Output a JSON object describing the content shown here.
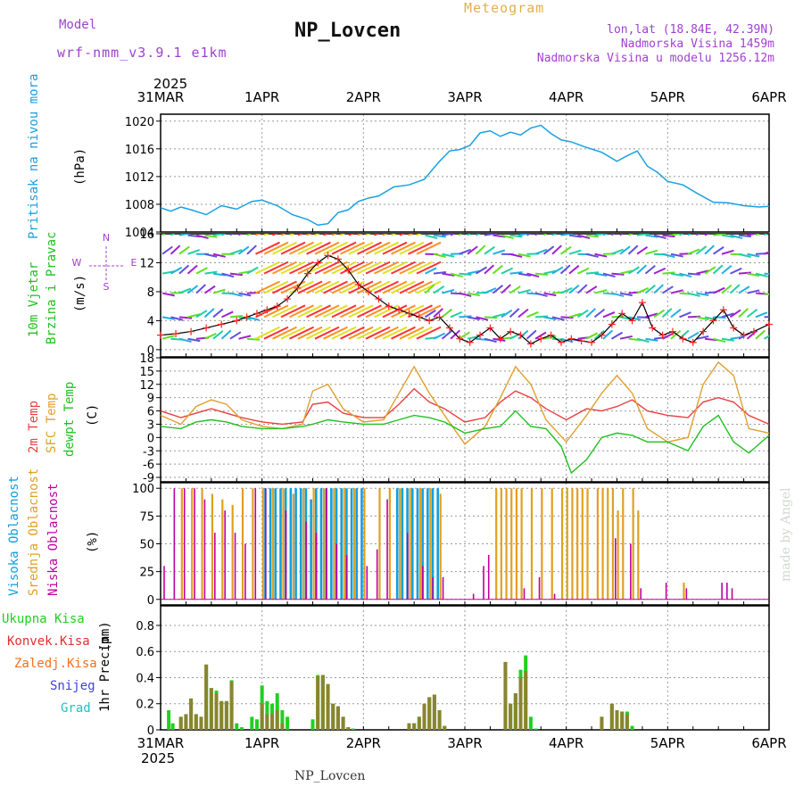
{
  "header": {
    "model_label": "Model",
    "model_version": "wrf-nmm_v3.9.1 e1km",
    "station": "NP_Lovcen",
    "meteogram": "Meteogram",
    "lonlat": "lon,lat (18.84E, 42.39N)",
    "elevation": "Nadmorska Visina 1459m",
    "model_elevation": "Nadmorska Visina u modelu 1256.12m",
    "footer": "NP_Lovcen",
    "made_by": "made by Angel"
  },
  "colors": {
    "pressure": "#1aa0e0",
    "temp2m": "#e84040",
    "sfc": "#e0a030",
    "dewpt": "#20c020",
    "high_cloud": "#10a0e0",
    "mid_cloud": "#e0a020",
    "low_cloud": "#c000a0",
    "total_precip": "#20d020",
    "conv_precip": "#e03030",
    "frozen": "#f07020",
    "snow": "#4040e0",
    "hail": "#20c0c0",
    "wind_line": "#000000",
    "wind_marker": "#ff2020",
    "purple_text": "#a040d0"
  },
  "time_axis": {
    "top_year": "2025",
    "bottom_year": "2025",
    "labels": [
      "31MAR",
      "1APR",
      "2APR",
      "3APR",
      "4APR",
      "5APR",
      "6APR"
    ]
  },
  "chart_data": [
    {
      "type": "line",
      "name": "pressure",
      "ylabel": "Pritisak na nivou mora",
      "unit": "(hPa)",
      "ylim": [
        1004,
        1021
      ],
      "yticks": [
        1004,
        1008,
        1012,
        1016,
        1020
      ],
      "grid": true,
      "series": [
        {
          "name": "",
          "x": [
            0,
            0.1,
            0.2,
            0.3,
            0.45,
            0.6,
            0.75,
            0.9,
            1.0,
            1.15,
            1.3,
            1.45,
            1.55,
            1.65,
            1.75,
            1.85,
            1.95,
            2.05,
            2.15,
            2.3,
            2.45,
            2.6,
            2.75,
            2.85,
            2.95,
            3.05,
            3.15,
            3.25,
            3.35,
            3.45,
            3.55,
            3.65,
            3.75,
            3.85,
            3.95,
            4.05,
            4.2,
            4.35,
            4.5,
            4.6,
            4.7,
            4.8,
            4.9,
            5.0,
            5.15,
            5.3,
            5.45,
            5.6,
            5.75,
            5.9,
            6.0
          ],
          "values": [
            1007.5,
            1007.0,
            1007.6,
            1007.2,
            1006.5,
            1007.8,
            1007.3,
            1008.4,
            1008.6,
            1007.8,
            1006.5,
            1005.8,
            1005.0,
            1005.2,
            1006.8,
            1007.2,
            1008.4,
            1008.9,
            1009.2,
            1010.5,
            1010.8,
            1011.6,
            1014.2,
            1015.7,
            1015.9,
            1016.5,
            1018.3,
            1018.6,
            1017.8,
            1018.4,
            1018.0,
            1019.0,
            1019.4,
            1018.2,
            1017.3,
            1017.0,
            1016.2,
            1015.5,
            1014.2,
            1015.0,
            1015.7,
            1013.5,
            1012.6,
            1011.3,
            1010.8,
            1009.5,
            1008.3,
            1008.2,
            1007.8,
            1007.6,
            1007.7
          ]
        }
      ]
    },
    {
      "type": "line",
      "name": "wind",
      "ylabel_1": "10m Vjetar",
      "ylabel_2": "Brzina i Pravac",
      "unit": "(m/s)",
      "compass": [
        "N",
        "E",
        "S",
        "W"
      ],
      "ylim": [
        -1,
        16
      ],
      "yticks": [
        0,
        4,
        8,
        12,
        16
      ],
      "grid": true,
      "series": [
        {
          "name": "",
          "x": [
            0.0,
            0.15,
            0.3,
            0.45,
            0.6,
            0.75,
            0.85,
            0.95,
            1.05,
            1.15,
            1.25,
            1.35,
            1.45,
            1.55,
            1.65,
            1.75,
            1.85,
            1.95,
            2.05,
            2.15,
            2.25,
            2.35,
            2.45,
            2.55,
            2.65,
            2.75,
            2.85,
            2.95,
            3.05,
            3.15,
            3.25,
            3.35,
            3.45,
            3.55,
            3.65,
            3.75,
            3.85,
            3.95,
            4.05,
            4.15,
            4.25,
            4.35,
            4.45,
            4.55,
            4.65,
            4.75,
            4.85,
            4.95,
            5.05,
            5.15,
            5.25,
            5.35,
            5.45,
            5.55,
            5.65,
            5.75,
            5.85,
            6.0
          ],
          "values": [
            2.0,
            2.2,
            2.5,
            3.0,
            3.5,
            4.0,
            4.5,
            5.0,
            5.5,
            6.0,
            7.0,
            8.5,
            10.5,
            12.0,
            13.0,
            12.5,
            11.0,
            9.0,
            8.0,
            7.0,
            6.0,
            5.5,
            5.0,
            4.5,
            4.0,
            4.5,
            3.0,
            1.5,
            1.0,
            2.0,
            3.0,
            1.5,
            2.5,
            2.0,
            0.8,
            1.5,
            2.0,
            1.0,
            1.5,
            1.2,
            1.0,
            2.0,
            3.5,
            5.0,
            4.0,
            6.5,
            3.0,
            2.0,
            2.5,
            1.5,
            1.0,
            2.5,
            4.0,
            5.5,
            3.0,
            2.0,
            2.5,
            3.5
          ]
        }
      ]
    },
    {
      "type": "line",
      "name": "temperature",
      "ylabel_1": "2m Temp",
      "ylabel_2": "SFC Temp",
      "ylabel_3": "dewpt Temp",
      "unit": "(C)",
      "ylim": [
        -10,
        18
      ],
      "yticks": [
        -9,
        -6,
        -3,
        0,
        3,
        6,
        9,
        12,
        15,
        18
      ],
      "grid": true,
      "series": [
        {
          "name": "2m Temp",
          "x": [
            0,
            0.2,
            0.35,
            0.5,
            0.65,
            0.8,
            1.0,
            1.2,
            1.4,
            1.5,
            1.65,
            1.8,
            2.0,
            2.2,
            2.35,
            2.5,
            2.65,
            2.8,
            3.0,
            3.2,
            3.35,
            3.5,
            3.65,
            3.8,
            4.0,
            4.2,
            4.35,
            4.5,
            4.65,
            4.8,
            5.0,
            5.2,
            5.35,
            5.5,
            5.65,
            5.8,
            6.0
          ],
          "values": [
            6.0,
            4.5,
            5.5,
            6.5,
            5.5,
            4.5,
            3.5,
            3.0,
            3.5,
            7.5,
            8.0,
            5.5,
            4.5,
            4.5,
            7.5,
            11.0,
            8.0,
            6.5,
            3.5,
            4.5,
            8.0,
            10.5,
            9.0,
            6.5,
            4.0,
            6.5,
            6.0,
            7.0,
            8.5,
            6.0,
            5.0,
            4.5,
            8.0,
            9.0,
            8.0,
            5.0,
            3.0
          ]
        },
        {
          "name": "SFC Temp",
          "x": [
            0,
            0.2,
            0.35,
            0.5,
            0.65,
            0.8,
            1.0,
            1.2,
            1.4,
            1.5,
            1.65,
            1.8,
            2.0,
            2.2,
            2.35,
            2.5,
            2.65,
            2.8,
            3.0,
            3.2,
            3.35,
            3.5,
            3.65,
            3.8,
            4.0,
            4.2,
            4.35,
            4.5,
            4.65,
            4.8,
            5.0,
            5.2,
            5.35,
            5.5,
            5.65,
            5.8,
            6.0
          ],
          "values": [
            5.0,
            3.0,
            7.0,
            8.5,
            7.5,
            4.0,
            2.5,
            2.0,
            3.0,
            10.5,
            12.0,
            6.5,
            3.5,
            4.0,
            10.0,
            16.0,
            10.0,
            5.0,
            -1.5,
            2.5,
            9.0,
            16.0,
            12.0,
            4.0,
            -1.0,
            5.0,
            10.0,
            14.0,
            10.0,
            2.0,
            -1.0,
            0.0,
            12.0,
            17.0,
            14.0,
            2.0,
            1.0
          ]
        },
        {
          "name": "dewpt Temp",
          "x": [
            0,
            0.2,
            0.35,
            0.5,
            0.65,
            0.8,
            1.0,
            1.2,
            1.4,
            1.5,
            1.65,
            1.8,
            2.0,
            2.2,
            2.35,
            2.5,
            2.65,
            2.8,
            3.0,
            3.2,
            3.35,
            3.5,
            3.65,
            3.8,
            3.95,
            4.05,
            4.2,
            4.35,
            4.5,
            4.65,
            4.8,
            5.0,
            5.2,
            5.35,
            5.5,
            5.65,
            5.8,
            6.0
          ],
          "values": [
            2.5,
            2.0,
            3.5,
            4.0,
            3.5,
            2.5,
            2.0,
            2.0,
            2.5,
            3.0,
            4.0,
            3.5,
            3.0,
            3.0,
            4.0,
            5.0,
            4.5,
            3.5,
            1.0,
            2.0,
            2.5,
            6.0,
            2.5,
            2.0,
            -2.0,
            -8.0,
            -5.0,
            0.0,
            1.0,
            0.5,
            -1.0,
            -1.0,
            -3.0,
            2.5,
            5.0,
            -1.0,
            -3.5,
            0.5
          ]
        }
      ]
    },
    {
      "type": "bar",
      "name": "cloudiness",
      "ylabel_1": "Visoka Oblacnost",
      "ylabel_2": "Srednja Oblacnost",
      "ylabel_3": "Niska Oblacnost",
      "unit": "(%)",
      "ylim": [
        -5,
        105
      ],
      "yticks": [
        0,
        25,
        50,
        75,
        100
      ],
      "grid": true,
      "series": [
        {
          "name": "Srednja Oblacnost",
          "x": [
            0.2,
            0.3,
            0.4,
            0.5,
            0.6,
            0.7,
            0.8,
            0.9,
            1.0,
            1.1,
            1.2,
            1.3,
            1.4,
            1.5,
            1.6,
            1.7,
            1.8,
            1.9,
            2.0,
            2.15,
            2.25,
            2.35,
            2.45,
            2.55,
            2.65,
            2.75,
            3.3,
            3.35,
            3.4,
            3.45,
            3.5,
            3.55,
            3.65,
            3.75,
            3.85,
            3.95,
            4.0,
            4.05,
            4.1,
            4.15,
            4.2,
            4.3,
            4.35,
            4.4,
            4.45,
            4.5,
            4.55,
            4.65,
            4.7,
            5.15
          ],
          "values": [
            100,
            100,
            100,
            95,
            90,
            85,
            100,
            100,
            100,
            100,
            100,
            95,
            100,
            100,
            100,
            100,
            100,
            100,
            100,
            100,
            100,
            100,
            100,
            100,
            100,
            95,
            100,
            100,
            100,
            100,
            100,
            100,
            100,
            100,
            100,
            100,
            100,
            100,
            100,
            100,
            100,
            100,
            100,
            100,
            100,
            80,
            100,
            100,
            80,
            15
          ]
        },
        {
          "name": "Visoka Oblacnost",
          "x": [
            1.0,
            1.05,
            1.1,
            1.15,
            1.2,
            1.25,
            1.3,
            1.35,
            1.4,
            1.45,
            1.5,
            1.55,
            1.6,
            1.65,
            1.7,
            1.75,
            1.8,
            1.85,
            1.9,
            1.95,
            2.3,
            2.35,
            2.4,
            2.45,
            2.5,
            2.55,
            2.6,
            2.65,
            2.7
          ],
          "values": [
            100,
            100,
            100,
            100,
            100,
            100,
            100,
            100,
            100,
            90,
            100,
            100,
            100,
            100,
            100,
            100,
            100,
            100,
            100,
            100,
            100,
            100,
            100,
            100,
            100,
            100,
            100,
            100,
            100
          ]
        },
        {
          "name": "Niska Oblacnost",
          "x": [
            0.05,
            0.15,
            0.25,
            0.35,
            0.45,
            0.55,
            0.65,
            0.75,
            0.85,
            0.95,
            1.05,
            1.25,
            1.45,
            1.55,
            1.65,
            1.75,
            1.85,
            2.05,
            2.15,
            2.25,
            2.45,
            2.6,
            2.7,
            2.8,
            3.1,
            3.2,
            3.25,
            3.6,
            3.75,
            3.9,
            4.5,
            4.65,
            4.75,
            5.0,
            5.2,
            5.55,
            5.6,
            5.65
          ],
          "values": [
            30,
            100,
            100,
            100,
            90,
            60,
            80,
            60,
            50,
            100,
            100,
            80,
            70,
            60,
            100,
            50,
            40,
            30,
            45,
            90,
            60,
            30,
            20,
            20,
            5,
            30,
            40,
            10,
            20,
            5,
            55,
            50,
            10,
            15,
            10,
            15,
            15,
            10
          ]
        }
      ]
    },
    {
      "type": "bar",
      "name": "precipitation",
      "ylabel": "1hr Precip",
      "unit": "(mm)",
      "legend": [
        "Ukupna Kisa",
        "Konvek.Kisa",
        "Zaledj.Kisa",
        "Snijeg",
        "Grad"
      ],
      "ylim": [
        0,
        0.95
      ],
      "yticks": [
        0,
        0.2,
        0.4,
        0.6,
        0.8
      ],
      "grid": true,
      "series": [
        {
          "name": "Ukupna Kisa",
          "x": [
            0.08,
            0.12,
            0.2,
            0.25,
            0.3,
            0.35,
            0.4,
            0.45,
            0.5,
            0.55,
            0.6,
            0.65,
            0.7,
            0.75,
            0.8,
            0.9,
            0.95,
            1.0,
            1.05,
            1.1,
            1.15,
            1.2,
            1.25,
            1.5,
            1.55,
            1.6,
            1.65,
            1.7,
            1.75,
            1.8,
            1.85,
            1.9,
            2.45,
            2.5,
            2.55,
            2.6,
            2.65,
            2.7,
            2.75,
            2.8,
            3.4,
            3.45,
            3.5,
            3.55,
            3.6,
            3.65,
            3.7,
            4.35,
            4.45,
            4.5,
            4.55,
            4.6,
            4.65
          ],
          "values": [
            0.15,
            0.05,
            0.1,
            0.12,
            0.24,
            0.12,
            0.1,
            0.5,
            0.32,
            0.3,
            0.22,
            0.22,
            0.38,
            0.05,
            0.02,
            0.1,
            0.08,
            0.34,
            0.22,
            0.2,
            0.28,
            0.15,
            0.1,
            0.08,
            0.42,
            0.42,
            0.35,
            0.2,
            0.18,
            0.1,
            0.02,
            0.01,
            0.05,
            0.05,
            0.1,
            0.2,
            0.25,
            0.27,
            0.15,
            0.03,
            0.52,
            0.2,
            0.28,
            0.46,
            0.57,
            0.1,
            0.01,
            0.1,
            0.2,
            0.15,
            0.14,
            0.14,
            0.03
          ]
        },
        {
          "name": "Konvek.Kisa",
          "x": [
            0.08,
            0.12,
            0.2,
            0.25,
            0.3,
            0.35,
            0.4,
            0.45,
            0.5,
            0.55,
            0.6,
            0.65,
            0.7,
            0.75,
            0.8,
            0.9,
            0.95,
            1.0,
            1.05,
            1.1,
            1.15,
            1.2,
            1.25,
            1.5,
            1.55,
            1.6,
            1.65,
            1.7,
            1.75,
            1.8,
            1.85,
            1.9,
            2.45,
            2.5,
            2.55,
            2.6,
            2.65,
            2.7,
            2.75,
            2.8,
            3.4,
            3.45,
            3.5,
            3.55,
            3.6,
            3.65,
            3.7,
            4.35,
            4.45,
            4.5,
            4.55,
            4.6,
            4.65
          ],
          "values": [
            0.0,
            0.0,
            0.1,
            0.12,
            0.24,
            0.12,
            0.1,
            0.5,
            0.32,
            0.28,
            0.22,
            0.22,
            0.37,
            0.0,
            0.0,
            0.0,
            0.0,
            0.2,
            0.12,
            0.12,
            0.15,
            0.05,
            0.0,
            0.0,
            0.41,
            0.42,
            0.35,
            0.2,
            0.18,
            0.1,
            0.02,
            0.0,
            0.05,
            0.05,
            0.1,
            0.2,
            0.25,
            0.27,
            0.15,
            0.03,
            0.52,
            0.2,
            0.28,
            0.4,
            0.45,
            0.0,
            0.0,
            0.1,
            0.2,
            0.15,
            0.14,
            0.12,
            0.0
          ]
        }
      ]
    }
  ]
}
